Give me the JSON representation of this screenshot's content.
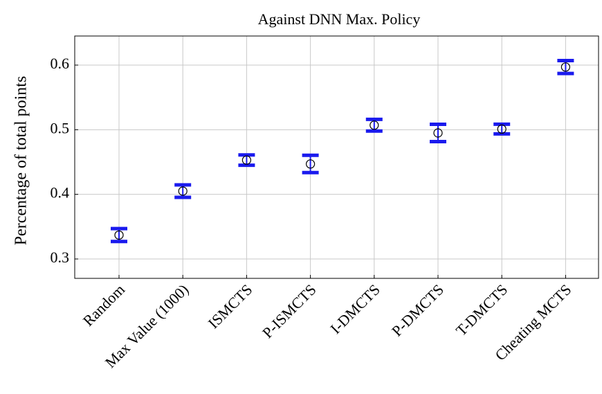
{
  "chart_data": {
    "type": "errorbar",
    "title": "Against DNN Max. Policy",
    "ylabel": "Percentage of total points",
    "categories": [
      "Random",
      "Max Value (1000)",
      "ISMCTS",
      "P-ISMCTS",
      "I-DMCTS",
      "P-DMCTS",
      "T-DMCTS",
      "Cheating MCTS"
    ],
    "series": [
      {
        "color": "#1a1aee",
        "values": [
          0.337,
          0.405,
          0.453,
          0.447,
          0.507,
          0.495,
          0.501,
          0.597
        ],
        "errors": [
          0.01,
          0.0097,
          0.008,
          0.0134,
          0.009,
          0.0134,
          0.0075,
          0.01
        ]
      }
    ],
    "ylim": [
      0.27,
      0.645
    ],
    "yticks": [
      0.3,
      0.4,
      0.5,
      0.6
    ],
    "grid": true
  }
}
